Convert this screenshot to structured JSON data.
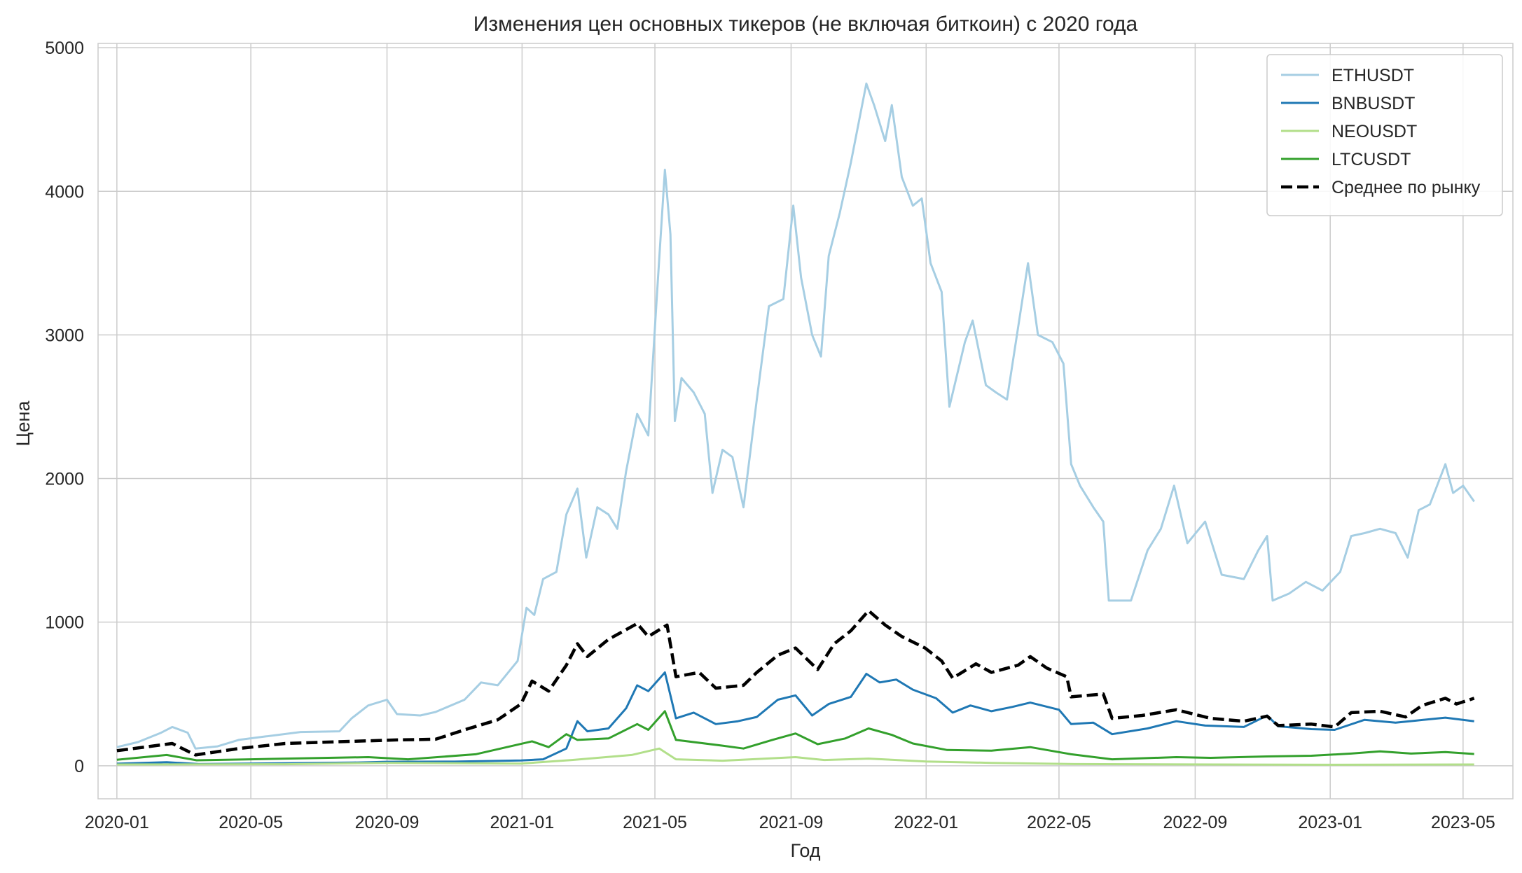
{
  "chart_data": {
    "type": "line",
    "title": "Изменения цен основных тикеров (не включая биткоин) с 2020 года",
    "xlabel": "Год",
    "ylabel": "Цена",
    "x_range": [
      "2019-12-15",
      "2023-06-15"
    ],
    "ylim": [
      -230,
      5030
    ],
    "x_ticks": [
      "2020-01",
      "2020-05",
      "2020-09",
      "2021-01",
      "2021-05",
      "2021-09",
      "2022-01",
      "2022-05",
      "2022-09",
      "2023-01",
      "2023-05"
    ],
    "y_ticks": [
      0,
      1000,
      2000,
      3000,
      4000,
      5000
    ],
    "grid": true,
    "legend_position": "top-right",
    "series": [
      {
        "name": "ETHUSDT",
        "color": "#a6cee3",
        "style": "solid",
        "points": [
          [
            "2020-01-01",
            130
          ],
          [
            "2020-01-20",
            165
          ],
          [
            "2020-02-10",
            230
          ],
          [
            "2020-02-20",
            270
          ],
          [
            "2020-03-05",
            230
          ],
          [
            "2020-03-12",
            120
          ],
          [
            "2020-04-01",
            135
          ],
          [
            "2020-04-20",
            180
          ],
          [
            "2020-05-15",
            205
          ],
          [
            "2020-06-15",
            235
          ],
          [
            "2020-07-20",
            240
          ],
          [
            "2020-07-31",
            330
          ],
          [
            "2020-08-15",
            420
          ],
          [
            "2020-09-01",
            460
          ],
          [
            "2020-09-10",
            360
          ],
          [
            "2020-10-01",
            350
          ],
          [
            "2020-10-15",
            375
          ],
          [
            "2020-11-10",
            460
          ],
          [
            "2020-11-25",
            580
          ],
          [
            "2020-12-10",
            560
          ],
          [
            "2020-12-28",
            730
          ],
          [
            "2021-01-05",
            1100
          ],
          [
            "2021-01-12",
            1050
          ],
          [
            "2021-01-20",
            1300
          ],
          [
            "2021-02-01",
            1350
          ],
          [
            "2021-02-10",
            1750
          ],
          [
            "2021-02-20",
            1930
          ],
          [
            "2021-02-28",
            1450
          ],
          [
            "2021-03-10",
            1800
          ],
          [
            "2021-03-20",
            1750
          ],
          [
            "2021-03-28",
            1650
          ],
          [
            "2021-04-05",
            2050
          ],
          [
            "2021-04-15",
            2450
          ],
          [
            "2021-04-25",
            2300
          ],
          [
            "2021-05-03",
            3300
          ],
          [
            "2021-05-10",
            4150
          ],
          [
            "2021-05-15",
            3700
          ],
          [
            "2021-05-19",
            2400
          ],
          [
            "2021-05-25",
            2700
          ],
          [
            "2021-06-05",
            2600
          ],
          [
            "2021-06-15",
            2450
          ],
          [
            "2021-06-22",
            1900
          ],
          [
            "2021-07-01",
            2200
          ],
          [
            "2021-07-10",
            2150
          ],
          [
            "2021-07-20",
            1800
          ],
          [
            "2021-08-01",
            2550
          ],
          [
            "2021-08-12",
            3200
          ],
          [
            "2021-08-25",
            3250
          ],
          [
            "2021-09-03",
            3900
          ],
          [
            "2021-09-10",
            3400
          ],
          [
            "2021-09-20",
            3000
          ],
          [
            "2021-09-28",
            2850
          ],
          [
            "2021-10-05",
            3550
          ],
          [
            "2021-10-15",
            3850
          ],
          [
            "2021-10-25",
            4200
          ],
          [
            "2021-11-08",
            4750
          ],
          [
            "2021-11-15",
            4600
          ],
          [
            "2021-11-25",
            4350
          ],
          [
            "2021-12-01",
            4600
          ],
          [
            "2021-12-10",
            4100
          ],
          [
            "2021-12-20",
            3900
          ],
          [
            "2021-12-28",
            3950
          ],
          [
            "2022-01-05",
            3500
          ],
          [
            "2022-01-15",
            3300
          ],
          [
            "2022-01-22",
            2500
          ],
          [
            "2022-02-05",
            2950
          ],
          [
            "2022-02-12",
            3100
          ],
          [
            "2022-02-24",
            2650
          ],
          [
            "2022-03-05",
            2600
          ],
          [
            "2022-03-15",
            2550
          ],
          [
            "2022-03-25",
            3050
          ],
          [
            "2022-04-03",
            3500
          ],
          [
            "2022-04-12",
            3000
          ],
          [
            "2022-04-25",
            2950
          ],
          [
            "2022-05-05",
            2800
          ],
          [
            "2022-05-12",
            2100
          ],
          [
            "2022-05-20",
            1950
          ],
          [
            "2022-06-01",
            1800
          ],
          [
            "2022-06-10",
            1700
          ],
          [
            "2022-06-15",
            1150
          ],
          [
            "2022-06-25",
            1150
          ],
          [
            "2022-07-05",
            1150
          ],
          [
            "2022-07-20",
            1500
          ],
          [
            "2022-08-01",
            1650
          ],
          [
            "2022-08-13",
            1950
          ],
          [
            "2022-08-25",
            1550
          ],
          [
            "2022-09-10",
            1700
          ],
          [
            "2022-09-25",
            1330
          ],
          [
            "2022-10-15",
            1300
          ],
          [
            "2022-10-28",
            1500
          ],
          [
            "2022-11-05",
            1600
          ],
          [
            "2022-11-10",
            1150
          ],
          [
            "2022-11-25",
            1200
          ],
          [
            "2022-12-10",
            1280
          ],
          [
            "2022-12-25",
            1220
          ],
          [
            "2023-01-10",
            1350
          ],
          [
            "2023-01-20",
            1600
          ],
          [
            "2023-02-01",
            1620
          ],
          [
            "2023-02-15",
            1650
          ],
          [
            "2023-03-01",
            1620
          ],
          [
            "2023-03-12",
            1450
          ],
          [
            "2023-03-22",
            1780
          ],
          [
            "2023-04-01",
            1820
          ],
          [
            "2023-04-15",
            2100
          ],
          [
            "2023-04-22",
            1900
          ],
          [
            "2023-05-01",
            1950
          ],
          [
            "2023-05-11",
            1840
          ]
        ]
      },
      {
        "name": "BNBUSDT",
        "color": "#1f78b4",
        "style": "solid",
        "points": [
          [
            "2020-01-01",
            14
          ],
          [
            "2020-02-15",
            25
          ],
          [
            "2020-03-15",
            12
          ],
          [
            "2020-06-01",
            17
          ],
          [
            "2020-08-01",
            22
          ],
          [
            "2020-09-01",
            28
          ],
          [
            "2020-11-01",
            29
          ],
          [
            "2020-12-31",
            37
          ],
          [
            "2021-01-20",
            45
          ],
          [
            "2021-02-10",
            120
          ],
          [
            "2021-02-20",
            310
          ],
          [
            "2021-03-01",
            240
          ],
          [
            "2021-03-20",
            260
          ],
          [
            "2021-04-05",
            400
          ],
          [
            "2021-04-15",
            560
          ],
          [
            "2021-04-25",
            520
          ],
          [
            "2021-05-10",
            650
          ],
          [
            "2021-05-20",
            330
          ],
          [
            "2021-06-05",
            370
          ],
          [
            "2021-06-25",
            290
          ],
          [
            "2021-07-15",
            310
          ],
          [
            "2021-08-01",
            340
          ],
          [
            "2021-08-20",
            460
          ],
          [
            "2021-09-05",
            490
          ],
          [
            "2021-09-20",
            350
          ],
          [
            "2021-10-05",
            430
          ],
          [
            "2021-10-25",
            480
          ],
          [
            "2021-11-08",
            640
          ],
          [
            "2021-11-20",
            580
          ],
          [
            "2021-12-05",
            600
          ],
          [
            "2021-12-20",
            530
          ],
          [
            "2022-01-10",
            470
          ],
          [
            "2022-01-25",
            370
          ],
          [
            "2022-02-10",
            420
          ],
          [
            "2022-03-01",
            380
          ],
          [
            "2022-03-20",
            410
          ],
          [
            "2022-04-05",
            440
          ],
          [
            "2022-05-01",
            390
          ],
          [
            "2022-05-12",
            290
          ],
          [
            "2022-06-01",
            300
          ],
          [
            "2022-06-18",
            220
          ],
          [
            "2022-07-20",
            260
          ],
          [
            "2022-08-15",
            310
          ],
          [
            "2022-09-10",
            280
          ],
          [
            "2022-10-15",
            270
          ],
          [
            "2022-11-05",
            350
          ],
          [
            "2022-11-15",
            275
          ],
          [
            "2022-12-15",
            255
          ],
          [
            "2023-01-05",
            250
          ],
          [
            "2023-02-01",
            320
          ],
          [
            "2023-03-01",
            300
          ],
          [
            "2023-03-20",
            315
          ],
          [
            "2023-04-15",
            335
          ],
          [
            "2023-05-11",
            310
          ]
        ]
      },
      {
        "name": "NEOUSDT",
        "color": "#b2df8a",
        "style": "solid",
        "points": [
          [
            "2020-01-01",
            9
          ],
          [
            "2020-06-01",
            11
          ],
          [
            "2020-09-01",
            20
          ],
          [
            "2020-12-31",
            15
          ],
          [
            "2021-02-15",
            40
          ],
          [
            "2021-04-10",
            75
          ],
          [
            "2021-05-05",
            120
          ],
          [
            "2021-05-20",
            45
          ],
          [
            "2021-07-01",
            35
          ],
          [
            "2021-09-05",
            60
          ],
          [
            "2021-10-01",
            40
          ],
          [
            "2021-11-10",
            50
          ],
          [
            "2022-01-01",
            30
          ],
          [
            "2022-03-01",
            20
          ],
          [
            "2022-05-15",
            12
          ],
          [
            "2022-12-31",
            7
          ],
          [
            "2023-05-11",
            9
          ]
        ]
      },
      {
        "name": "LTCUSDT",
        "color": "#33a02c",
        "style": "solid",
        "points": [
          [
            "2020-01-01",
            42
          ],
          [
            "2020-02-15",
            75
          ],
          [
            "2020-03-13",
            38
          ],
          [
            "2020-05-01",
            45
          ],
          [
            "2020-08-15",
            60
          ],
          [
            "2020-09-20",
            45
          ],
          [
            "2020-11-20",
            80
          ],
          [
            "2021-01-10",
            170
          ],
          [
            "2021-01-25",
            130
          ],
          [
            "2021-02-10",
            220
          ],
          [
            "2021-02-20",
            180
          ],
          [
            "2021-03-20",
            190
          ],
          [
            "2021-04-15",
            290
          ],
          [
            "2021-04-25",
            250
          ],
          [
            "2021-05-10",
            380
          ],
          [
            "2021-05-20",
            180
          ],
          [
            "2021-07-01",
            140
          ],
          [
            "2021-07-20",
            120
          ],
          [
            "2021-08-15",
            180
          ],
          [
            "2021-09-05",
            225
          ],
          [
            "2021-09-25",
            150
          ],
          [
            "2021-10-20",
            190
          ],
          [
            "2021-11-10",
            260
          ],
          [
            "2021-12-01",
            215
          ],
          [
            "2021-12-20",
            155
          ],
          [
            "2022-01-20",
            110
          ],
          [
            "2022-03-01",
            105
          ],
          [
            "2022-04-05",
            130
          ],
          [
            "2022-05-12",
            80
          ],
          [
            "2022-06-18",
            45
          ],
          [
            "2022-08-15",
            60
          ],
          [
            "2022-09-15",
            55
          ],
          [
            "2022-11-05",
            65
          ],
          [
            "2022-12-15",
            70
          ],
          [
            "2023-01-20",
            85
          ],
          [
            "2023-02-15",
            100
          ],
          [
            "2023-03-15",
            85
          ],
          [
            "2023-04-15",
            95
          ],
          [
            "2023-05-11",
            82
          ]
        ]
      },
      {
        "name": "Среднее по рынку",
        "color": "#000000",
        "style": "dashed",
        "points": [
          [
            "2020-01-01",
            105
          ],
          [
            "2020-02-20",
            155
          ],
          [
            "2020-03-12",
            75
          ],
          [
            "2020-04-20",
            120
          ],
          [
            "2020-06-01",
            155
          ],
          [
            "2020-08-01",
            170
          ],
          [
            "2020-09-10",
            180
          ],
          [
            "2020-10-15",
            185
          ],
          [
            "2020-11-10",
            250
          ],
          [
            "2020-12-10",
            320
          ],
          [
            "2020-12-31",
            430
          ],
          [
            "2021-01-10",
            590
          ],
          [
            "2021-01-25",
            520
          ],
          [
            "2021-02-10",
            700
          ],
          [
            "2021-02-20",
            850
          ],
          [
            "2021-03-01",
            760
          ],
          [
            "2021-03-20",
            880
          ],
          [
            "2021-04-15",
            990
          ],
          [
            "2021-04-25",
            900
          ],
          [
            "2021-05-12",
            980
          ],
          [
            "2021-05-20",
            620
          ],
          [
            "2021-06-10",
            650
          ],
          [
            "2021-06-25",
            540
          ],
          [
            "2021-07-20",
            560
          ],
          [
            "2021-08-01",
            650
          ],
          [
            "2021-08-20",
            770
          ],
          [
            "2021-09-05",
            820
          ],
          [
            "2021-09-25",
            670
          ],
          [
            "2021-10-10",
            850
          ],
          [
            "2021-10-25",
            940
          ],
          [
            "2021-11-10",
            1080
          ],
          [
            "2021-11-25",
            980
          ],
          [
            "2021-12-10",
            900
          ],
          [
            "2021-12-31",
            820
          ],
          [
            "2022-01-15",
            730
          ],
          [
            "2022-01-25",
            610
          ],
          [
            "2022-02-15",
            710
          ],
          [
            "2022-03-01",
            650
          ],
          [
            "2022-03-25",
            700
          ],
          [
            "2022-04-05",
            760
          ],
          [
            "2022-04-20",
            680
          ],
          [
            "2022-05-08",
            620
          ],
          [
            "2022-05-12",
            480
          ],
          [
            "2022-06-10",
            500
          ],
          [
            "2022-06-18",
            330
          ],
          [
            "2022-07-15",
            350
          ],
          [
            "2022-08-15",
            390
          ],
          [
            "2022-09-15",
            330
          ],
          [
            "2022-10-15",
            310
          ],
          [
            "2022-11-05",
            345
          ],
          [
            "2022-11-15",
            280
          ],
          [
            "2022-12-15",
            290
          ],
          [
            "2023-01-05",
            270
          ],
          [
            "2023-01-20",
            370
          ],
          [
            "2023-02-15",
            380
          ],
          [
            "2023-03-10",
            340
          ],
          [
            "2023-03-25",
            420
          ],
          [
            "2023-04-15",
            470
          ],
          [
            "2023-04-25",
            430
          ],
          [
            "2023-05-11",
            470
          ]
        ]
      }
    ]
  }
}
